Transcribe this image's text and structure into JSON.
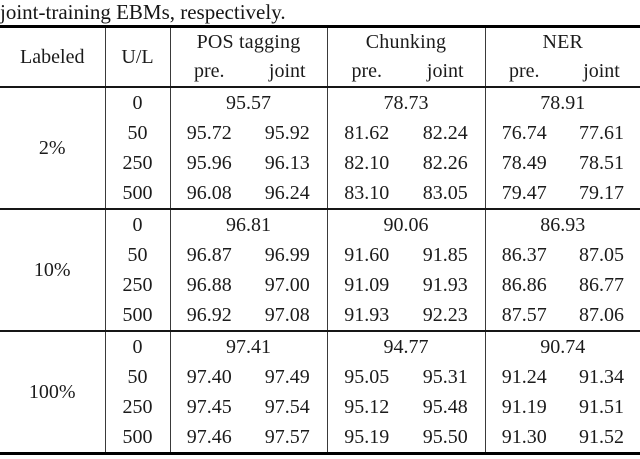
{
  "caption": "joint-training EBMs, respectively.",
  "table": {
    "header": {
      "labeled": "Labeled",
      "ul": "U/L",
      "groups": [
        {
          "label": "POS tagging",
          "sub": [
            "pre.",
            "joint"
          ]
        },
        {
          "label": "Chunking",
          "sub": [
            "pre.",
            "joint"
          ]
        },
        {
          "label": "NER",
          "sub": [
            "pre.",
            "joint"
          ]
        }
      ]
    },
    "blocks": [
      {
        "labeled": "2%",
        "rows": [
          {
            "ul": "0",
            "merged": [
              "95.57",
              "78.73",
              "78.91"
            ]
          },
          {
            "ul": "50",
            "values": [
              "95.72",
              "95.92",
              "81.62",
              "82.24",
              "76.74",
              "77.61"
            ]
          },
          {
            "ul": "250",
            "values": [
              "95.96",
              "96.13",
              "82.10",
              "82.26",
              "78.49",
              "78.51"
            ]
          },
          {
            "ul": "500",
            "values": [
              "96.08",
              "96.24",
              "83.10",
              "83.05",
              "79.47",
              "79.17"
            ]
          }
        ]
      },
      {
        "labeled": "10%",
        "rows": [
          {
            "ul": "0",
            "merged": [
              "96.81",
              "90.06",
              "86.93"
            ]
          },
          {
            "ul": "50",
            "values": [
              "96.87",
              "96.99",
              "91.60",
              "91.85",
              "86.37",
              "87.05"
            ]
          },
          {
            "ul": "250",
            "values": [
              "96.88",
              "97.00",
              "91.09",
              "91.93",
              "86.86",
              "86.77"
            ]
          },
          {
            "ul": "500",
            "values": [
              "96.92",
              "97.08",
              "91.93",
              "92.23",
              "87.57",
              "87.06"
            ]
          }
        ]
      },
      {
        "labeled": "100%",
        "rows": [
          {
            "ul": "0",
            "merged": [
              "97.41",
              "94.77",
              "90.74"
            ]
          },
          {
            "ul": "50",
            "values": [
              "97.40",
              "97.49",
              "95.05",
              "95.31",
              "91.24",
              "91.34"
            ]
          },
          {
            "ul": "250",
            "values": [
              "97.45",
              "97.54",
              "95.12",
              "95.48",
              "91.19",
              "91.51"
            ]
          },
          {
            "ul": "500",
            "values": [
              "97.46",
              "97.57",
              "95.19",
              "95.50",
              "91.30",
              "91.52"
            ]
          }
        ]
      }
    ]
  },
  "colors": {
    "text": "#1b1b1b",
    "rule_thick": "#000000",
    "rule_thin": "#3a3a3a",
    "background": "#ffffff"
  }
}
